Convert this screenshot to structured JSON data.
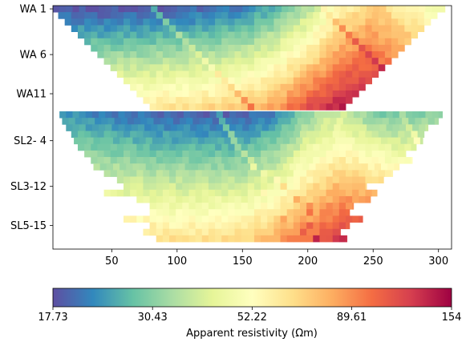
{
  "chart_data": {
    "type": "heatmap",
    "xlim": [
      5,
      310
    ],
    "x_ticks": [
      50,
      100,
      150,
      200,
      250,
      300
    ],
    "y_labels": [
      "WA 1",
      "WA 6",
      "WA11",
      "SL2- 4",
      "SL3-12",
      "SL5-15"
    ],
    "grid": false,
    "colorbar": {
      "label": "Apparent resistivity (Ωm)",
      "tick_labels": [
        "17.73",
        "30.43",
        "52.22",
        "89.61",
        "154"
      ],
      "placement": "bottom",
      "colormap": "Spectral_r",
      "scale": "log"
    },
    "colors": [
      "#5e4fa2",
      "#3288bd",
      "#66c2a5",
      "#abdda4",
      "#e6f598",
      "#ffffbf",
      "#fee08b",
      "#fdae61",
      "#f46d43",
      "#d53e4f",
      "#9e0142"
    ],
    "pseudosections": [
      {
        "name": "WA",
        "row_extents_x": [
          [
            5,
            305
          ],
          [
            9,
            299
          ],
          [
            14,
            294
          ],
          [
            19,
            289
          ],
          [
            24,
            284
          ],
          [
            29,
            279
          ],
          [
            34,
            274
          ],
          [
            39,
            269
          ],
          [
            44,
            264
          ],
          [
            49,
            259
          ],
          [
            54,
            254
          ],
          [
            59,
            249
          ],
          [
            64,
            244
          ],
          [
            69,
            239
          ],
          [
            74,
            234
          ],
          [
            79,
            229
          ]
        ],
        "approx_log_resistivity_profile": {
          "x": [
            5,
            50,
            100,
            150,
            175,
            200,
            225,
            250,
            275,
            305
          ],
          "shallow_row": [
            1.27,
            1.26,
            1.28,
            1.33,
            1.42,
            1.55,
            1.75,
            1.85,
            1.75,
            1.65
          ],
          "deep_row": [
            1.78,
            1.78,
            1.8,
            1.85,
            1.92,
            2.05,
            2.15,
            2.15,
            2.1,
            2.1
          ]
        }
      },
      {
        "name": "SL",
        "row_extents_x": [
          [
            10,
            303
          ],
          [
            12,
            300
          ],
          [
            15,
            292
          ],
          [
            19,
            289
          ],
          [
            21,
            288
          ],
          [
            24,
            283
          ],
          [
            29,
            275
          ],
          [
            34,
            280
          ],
          [
            36,
            270
          ],
          [
            44,
            265
          ],
          [
            54,
            258
          ],
          [
            59,
            245
          ],
          [
            44,
            253
          ],
          [
            69,
            248
          ],
          [
            79,
            235
          ],
          [
            79,
            232
          ],
          [
            59,
            242
          ],
          [
            79,
            232
          ],
          [
            74,
            225
          ],
          [
            84,
            230
          ]
        ],
        "approx_log_resistivity_profile": {
          "x": [
            10,
            50,
            100,
            150,
            175,
            200,
            225,
            250,
            275,
            303
          ],
          "shallow_row": [
            1.37,
            1.32,
            1.29,
            1.28,
            1.34,
            1.5,
            1.6,
            1.48,
            1.45,
            1.5
          ],
          "deep_row": [
            1.85,
            1.82,
            1.8,
            1.82,
            1.9,
            2.0,
            2.1,
            2.12,
            2.1,
            2.1
          ]
        }
      }
    ]
  }
}
